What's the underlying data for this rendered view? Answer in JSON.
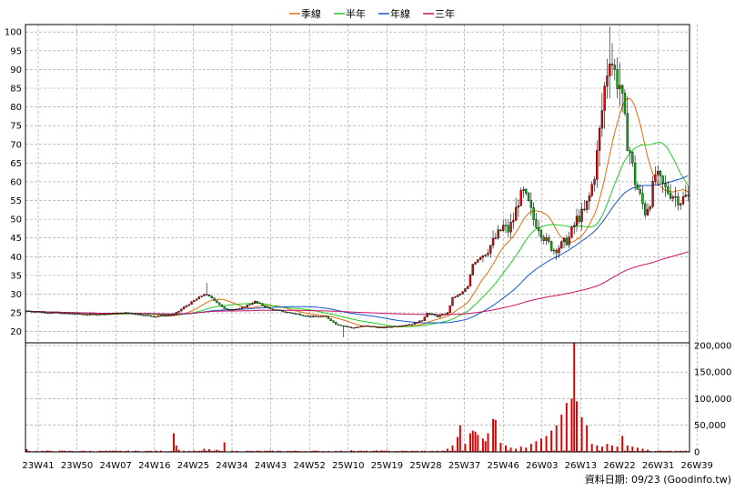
{
  "chart_data": {
    "type": "candlestick-with-moving-averages-and-volume",
    "legend": {
      "placement": "top-center",
      "items": [
        {
          "label": "季線",
          "color": "#e46c0a"
        },
        {
          "label": "半年",
          "color": "#22cc22"
        },
        {
          "label": "年線",
          "color": "#1155cc"
        },
        {
          "label": "三年",
          "color": "#cc1166"
        }
      ]
    },
    "price_axis": {
      "ylim": [
        17,
        102
      ],
      "ticks": [
        20,
        25,
        30,
        35,
        40,
        45,
        50,
        55,
        60,
        65,
        70,
        75,
        80,
        85,
        90,
        95,
        100
      ],
      "grid": true
    },
    "volume_axis": {
      "ylim": [
        0,
        205000
      ],
      "ticks": [
        0,
        50000,
        100000,
        150000,
        200000
      ],
      "tick_labels": [
        "0",
        "50,000",
        "100,000",
        "150,000",
        "200,000"
      ]
    },
    "x_tick_labels": [
      "23W41",
      "23W50",
      "24W07",
      "24W16",
      "24W25",
      "24W34",
      "24W43",
      "24W52",
      "25W10",
      "25W19",
      "25W28",
      "25W37",
      "25W46",
      "26W03",
      "26W13",
      "26W22",
      "26W31",
      "26W39"
    ],
    "source_label": "資料日期: 09/23 (Goodinfo.tw)",
    "colors": {
      "up": "#ee0000",
      "down": "#00bb00",
      "grid": "#999999",
      "volume": "#dd0000"
    },
    "anchor_points": [
      [
        0,
        25.5
      ],
      [
        10,
        25
      ],
      [
        25,
        24.5
      ],
      [
        40,
        25
      ],
      [
        50,
        24
      ],
      [
        58,
        24.5
      ],
      [
        62,
        26.5
      ],
      [
        70,
        30
      ],
      [
        73,
        29
      ],
      [
        78,
        26
      ],
      [
        84,
        26
      ],
      [
        90,
        28
      ],
      [
        96,
        26
      ],
      [
        104,
        25
      ],
      [
        112,
        24
      ],
      [
        118,
        24
      ],
      [
        122,
        22
      ],
      [
        128,
        21
      ],
      [
        134,
        21.5
      ],
      [
        140,
        21
      ],
      [
        146,
        21.5
      ],
      [
        152,
        22
      ],
      [
        156,
        23
      ],
      [
        158,
        25
      ],
      [
        162,
        24
      ],
      [
        166,
        25
      ],
      [
        168,
        29
      ],
      [
        171,
        30
      ],
      [
        174,
        32
      ],
      [
        176,
        38
      ],
      [
        179,
        40
      ],
      [
        182,
        42
      ],
      [
        185,
        45
      ],
      [
        188,
        48
      ],
      [
        190,
        47
      ],
      [
        192,
        50
      ],
      [
        194,
        55
      ],
      [
        196,
        57
      ],
      [
        198,
        54
      ],
      [
        200,
        50
      ],
      [
        202,
        48
      ],
      [
        205,
        44
      ],
      [
        208,
        42
      ],
      [
        211,
        43
      ],
      [
        214,
        45
      ],
      [
        217,
        50
      ],
      [
        220,
        52
      ],
      [
        222,
        56
      ],
      [
        224,
        62
      ],
      [
        226,
        73
      ],
      [
        228,
        85
      ],
      [
        230,
        95
      ],
      [
        232,
        89
      ],
      [
        234,
        86
      ],
      [
        236,
        75
      ],
      [
        238,
        68
      ],
      [
        240,
        60
      ],
      [
        242,
        56
      ],
      [
        244,
        52
      ],
      [
        246,
        55
      ],
      [
        248,
        62
      ],
      [
        250,
        60
      ],
      [
        252,
        58
      ],
      [
        254,
        57
      ],
      [
        256,
        56
      ],
      [
        258,
        55
      ],
      [
        260,
        56
      ]
    ],
    "volume_spikes": [
      [
        0,
        5000
      ],
      [
        58,
        35000
      ],
      [
        59,
        12000
      ],
      [
        60,
        4000
      ],
      [
        70,
        6000
      ],
      [
        72,
        5000
      ],
      [
        75,
        4000
      ],
      [
        78,
        18000
      ],
      [
        128,
        3000
      ],
      [
        140,
        3000
      ],
      [
        166,
        6000
      ],
      [
        168,
        12000
      ],
      [
        170,
        28000
      ],
      [
        171,
        50000
      ],
      [
        173,
        15000
      ],
      [
        175,
        35000
      ],
      [
        176,
        40000
      ],
      [
        177,
        38000
      ],
      [
        178,
        32000
      ],
      [
        180,
        25000
      ],
      [
        181,
        20000
      ],
      [
        182,
        35000
      ],
      [
        184,
        62000
      ],
      [
        185,
        60000
      ],
      [
        187,
        17000
      ],
      [
        189,
        12000
      ],
      [
        191,
        8000
      ],
      [
        193,
        6000
      ],
      [
        195,
        10000
      ],
      [
        197,
        8000
      ],
      [
        199,
        15000
      ],
      [
        201,
        20000
      ],
      [
        203,
        25000
      ],
      [
        205,
        30000
      ],
      [
        207,
        40000
      ],
      [
        209,
        50000
      ],
      [
        211,
        70000
      ],
      [
        213,
        92000
      ],
      [
        215,
        100000
      ],
      [
        216,
        205000
      ],
      [
        217,
        95000
      ],
      [
        219,
        65000
      ],
      [
        221,
        50000
      ],
      [
        223,
        15000
      ],
      [
        225,
        12000
      ],
      [
        227,
        10000
      ],
      [
        229,
        15000
      ],
      [
        231,
        12000
      ],
      [
        233,
        10000
      ],
      [
        235,
        30000
      ],
      [
        237,
        12000
      ],
      [
        239,
        10000
      ],
      [
        241,
        8000
      ],
      [
        243,
        6000
      ],
      [
        245,
        4000
      ]
    ]
  }
}
